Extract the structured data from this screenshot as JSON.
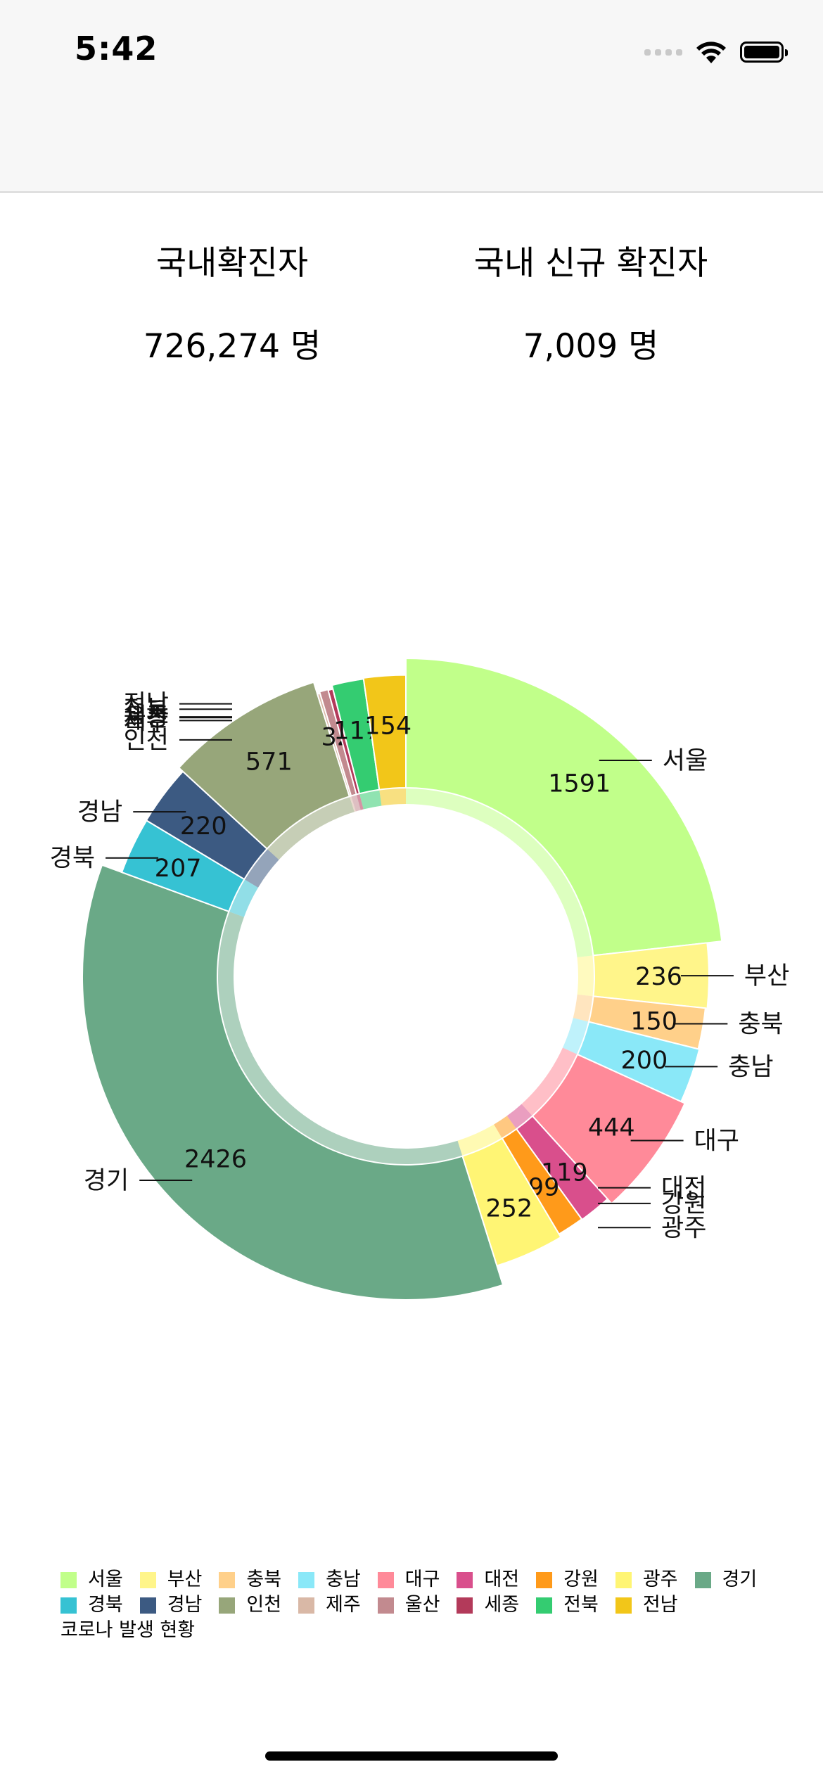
{
  "status_bar": {
    "time": "5:42"
  },
  "stats": {
    "total_label": "국내확진자",
    "total_value": "726,274 명",
    "new_label": "국내 신규 확진자",
    "new_value": "7,009 명"
  },
  "chart_data": {
    "type": "pie",
    "variant": "donut",
    "caption": "코로나 발생 현황",
    "legend_position": "bottom",
    "categories": [
      "서울",
      "부산",
      "충북",
      "충남",
      "대구",
      "대전",
      "강원",
      "광주",
      "경기",
      "경북",
      "경남",
      "인천",
      "제주",
      "울산",
      "세종",
      "전북",
      "전남"
    ],
    "values": [
      1591,
      236,
      150,
      200,
      444,
      119,
      99,
      252,
      2426,
      207,
      220,
      571,
      10,
      32,
      18,
      117,
      154
    ],
    "colors": [
      "#c1ff8a",
      "#fff58a",
      "#ffd08a",
      "#8ae8f8",
      "#ff8a99",
      "#d94f8c",
      "#ff9a1a",
      "#fff574",
      "#6aa987",
      "#36c2d3",
      "#3c5a82",
      "#97a67a",
      "#d9b8a6",
      "#c28a8f",
      "#b33a5a",
      "#34cc71",
      "#f2c619"
    ],
    "value_labels_shown": [
      "1591",
      "236",
      "150",
      "200",
      "444",
      "119",
      "99",
      "252",
      "2426",
      "207",
      "220",
      "571",
      "",
      "32",
      "",
      "117",
      "154"
    ]
  }
}
